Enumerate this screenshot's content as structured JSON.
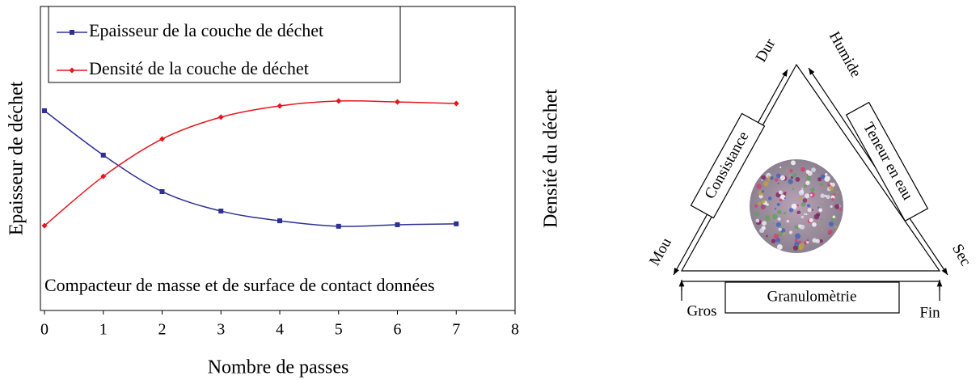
{
  "chart_data": {
    "type": "line",
    "xlabel": "Nombre de passes",
    "ylabel": "Epaisseur de déchet",
    "y2label": "Densité du déchet",
    "annotation": "Compacteur de masse et de surface de contact données",
    "x": [
      0,
      1,
      2,
      3,
      4,
      5,
      6,
      7
    ],
    "xlim": [
      0,
      8
    ],
    "xticks": [
      0,
      1,
      2,
      3,
      4,
      5,
      6,
      7,
      8
    ],
    "ylim": [
      0,
      10
    ],
    "series": [
      {
        "name": "Epaisseur de la couche de déchet",
        "color": "#2e3192",
        "marker": "square",
        "values": [
          6.57,
          5.11,
          3.91,
          3.27,
          2.95,
          2.77,
          2.82,
          2.85
        ]
      },
      {
        "name": "Densité de la couche de déchet",
        "color": "#e8141c",
        "marker": "diamond",
        "values": [
          2.79,
          4.41,
          5.64,
          6.36,
          6.73,
          6.89,
          6.86,
          6.81
        ]
      }
    ]
  },
  "diagram": {
    "top_left": "Dur",
    "top_right": "Humide",
    "left_box": "Consistance",
    "right_box": "Teneur en eau",
    "bottom_left_side": "Mou",
    "bottom_right_side": "Sec",
    "bottom_box": "Granulomètrie",
    "bottom_left": "Gros",
    "bottom_right": "Fin"
  }
}
